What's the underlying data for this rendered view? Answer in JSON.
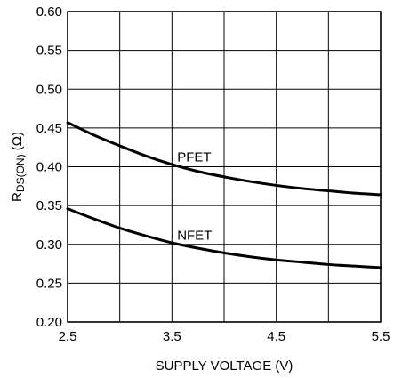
{
  "chart_data": {
    "type": "line",
    "title": "",
    "xlabel": "SUPPLY VOLTAGE (V)",
    "ylabel": {
      "main": "R",
      "sub": "DS(ON)",
      "unit": " (Ω)"
    },
    "xlim": [
      2.5,
      5.5
    ],
    "ylim": [
      0.2,
      0.6
    ],
    "x_ticks": [
      {
        "value": 2.5,
        "label": "2.5"
      },
      {
        "value": 3.5,
        "label": "3.5"
      },
      {
        "value": 4.5,
        "label": "4.5"
      },
      {
        "value": 5.5,
        "label": "5.5"
      }
    ],
    "y_ticks": [
      {
        "value": 0.2,
        "label": "0.20"
      },
      {
        "value": 0.25,
        "label": "0.25"
      },
      {
        "value": 0.3,
        "label": "0.30"
      },
      {
        "value": 0.35,
        "label": "0.35"
      },
      {
        "value": 0.4,
        "label": "0.40"
      },
      {
        "value": 0.45,
        "label": "0.45"
      },
      {
        "value": 0.5,
        "label": "0.50"
      },
      {
        "value": 0.55,
        "label": "0.55"
      },
      {
        "value": 0.6,
        "label": "0.60"
      }
    ],
    "grid_x": [
      2.5,
      3.0,
      3.5,
      4.0,
      4.5,
      5.0,
      5.5
    ],
    "grid_y": [
      0.2,
      0.25,
      0.3,
      0.35,
      0.4,
      0.45,
      0.5,
      0.55,
      0.6
    ],
    "grid": true,
    "series": [
      {
        "name": "PFET",
        "x": [
          2.5,
          2.75,
          3.0,
          3.25,
          3.5,
          3.75,
          4.0,
          4.25,
          4.5,
          4.75,
          5.0,
          5.25,
          5.5
        ],
        "y": [
          0.457,
          0.441,
          0.427,
          0.414,
          0.403,
          0.394,
          0.387,
          0.381,
          0.376,
          0.372,
          0.369,
          0.366,
          0.364
        ]
      },
      {
        "name": "NFET",
        "x": [
          2.5,
          2.75,
          3.0,
          3.25,
          3.5,
          3.75,
          4.0,
          4.25,
          4.5,
          4.75,
          5.0,
          5.25,
          5.5
        ],
        "y": [
          0.346,
          0.333,
          0.321,
          0.311,
          0.302,
          0.295,
          0.289,
          0.284,
          0.28,
          0.277,
          0.274,
          0.272,
          0.27
        ]
      }
    ],
    "annotations": [
      {
        "text": "PFET",
        "x": 3.55,
        "y": 0.407
      },
      {
        "text": "NFET",
        "x": 3.55,
        "y": 0.306
      }
    ]
  }
}
